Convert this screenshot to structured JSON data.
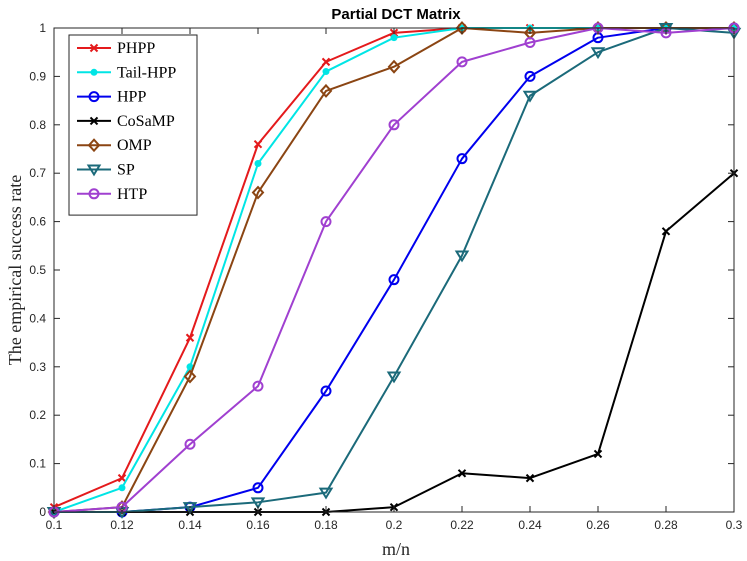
{
  "chart_data": {
    "type": "line",
    "title": "Partial DCT Matrix",
    "xlabel": "m/n",
    "ylabel": "The empirical success rate",
    "xlim": [
      0.1,
      0.3
    ],
    "ylim": [
      0,
      1
    ],
    "xticks": [
      "0.1",
      "0.12",
      "0.14",
      "0.16",
      "0.18",
      "0.2",
      "0.22",
      "0.24",
      "0.26",
      "0.28",
      "0.3"
    ],
    "yticks": [
      "0",
      "0.1",
      "0.2",
      "0.3",
      "0.4",
      "0.5",
      "0.6",
      "0.7",
      "0.8",
      "0.9",
      "1"
    ],
    "legend_position": "top-left",
    "x": [
      0.1,
      0.12,
      0.14,
      0.16,
      0.18,
      0.2,
      0.22,
      0.24,
      0.26,
      0.28,
      0.3
    ],
    "series": [
      {
        "name": "PHPP",
        "color": "#e41a1c",
        "marker": "x",
        "values": [
          0.01,
          0.07,
          0.36,
          0.76,
          0.93,
          0.99,
          1.0,
          1.0,
          1.0,
          1.0,
          1.0
        ]
      },
      {
        "name": "Tail-HPP",
        "color": "#00e5e5",
        "marker": "dot",
        "values": [
          0.0,
          0.05,
          0.3,
          0.72,
          0.91,
          0.98,
          1.0,
          1.0,
          1.0,
          1.0,
          1.0
        ]
      },
      {
        "name": "HPP",
        "color": "#0000ee",
        "marker": "circle",
        "values": [
          0.0,
          0.0,
          0.01,
          0.05,
          0.25,
          0.48,
          0.73,
          0.9,
          0.98,
          1.0,
          1.0
        ]
      },
      {
        "name": "CoSaMP",
        "color": "#000000",
        "marker": "x",
        "values": [
          0.0,
          0.0,
          0.0,
          0.0,
          0.0,
          0.01,
          0.08,
          0.07,
          0.12,
          0.58,
          0.7
        ]
      },
      {
        "name": "OMP",
        "color": "#8b4513",
        "marker": "diamond",
        "values": [
          0.0,
          0.01,
          0.28,
          0.66,
          0.87,
          0.92,
          1.0,
          0.99,
          1.0,
          1.0,
          1.0
        ]
      },
      {
        "name": "SP",
        "color": "#1b6a7a",
        "marker": "triangle-down",
        "values": [
          0.0,
          0.0,
          0.01,
          0.02,
          0.04,
          0.28,
          0.53,
          0.86,
          0.95,
          1.0,
          0.99
        ]
      },
      {
        "name": "HTP",
        "color": "#a040d0",
        "marker": "circle",
        "values": [
          0.0,
          0.01,
          0.14,
          0.26,
          0.6,
          0.8,
          0.93,
          0.97,
          1.0,
          0.99,
          1.0
        ]
      }
    ]
  }
}
